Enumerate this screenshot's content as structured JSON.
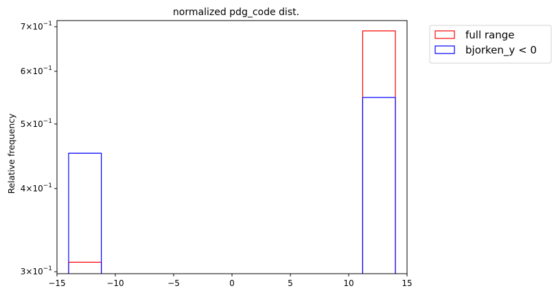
{
  "chart_data": {
    "type": "bar",
    "title": "normalized pdg_code dist.",
    "xlabel": "",
    "ylabel": "Relative frequency",
    "yscale": "log",
    "xlim": [
      -15,
      15
    ],
    "ylim": [
      0.298,
      0.715
    ],
    "x_ticks": [
      -15,
      -10,
      -5,
      0,
      5,
      10,
      15
    ],
    "x_tick_labels": [
      "−15",
      "−10",
      "−5",
      "0",
      "5",
      "10",
      "15"
    ],
    "y_ticks": [
      {
        "value": 0.3,
        "mantissa": "3",
        "base": "10",
        "exp": "−1"
      },
      {
        "value": 0.4,
        "mantissa": "4",
        "base": "10",
        "exp": "−1"
      },
      {
        "value": 0.5,
        "mantissa": "5",
        "base": "10",
        "exp": "−1"
      },
      {
        "value": 0.6,
        "mantissa": "6",
        "base": "10",
        "exp": "−1"
      },
      {
        "value": 0.7,
        "mantissa": "7",
        "base": "10",
        "exp": "−1"
      }
    ],
    "grid": false,
    "legend": "outside-top-right",
    "series": [
      {
        "name": "full range",
        "color": "#ff0000",
        "bins": [
          {
            "x0": -14,
            "x1": -11.2,
            "value": 0.31
          },
          {
            "x0": 11.2,
            "x1": 14,
            "value": 0.69
          }
        ]
      },
      {
        "name": "bjorken_y < 0",
        "color": "#0000ff",
        "bins": [
          {
            "x0": -14,
            "x1": -11.2,
            "value": 0.452
          },
          {
            "x0": 11.2,
            "x1": 14,
            "value": 0.548
          }
        ]
      }
    ]
  }
}
